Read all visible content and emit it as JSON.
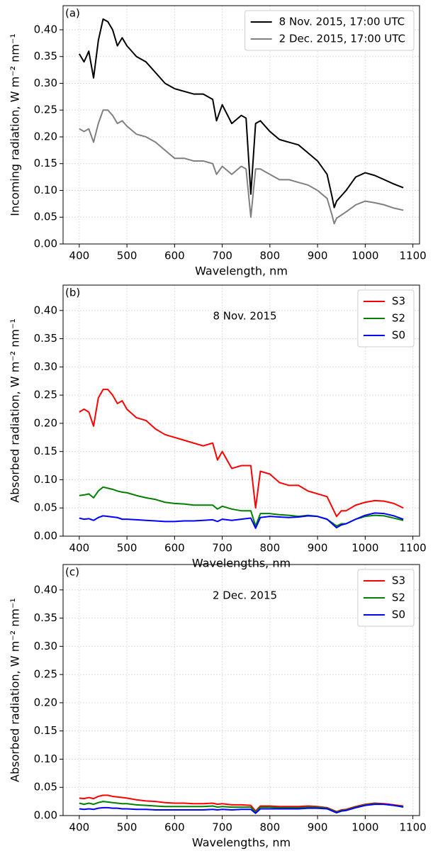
{
  "chart_data": [
    {
      "type": "line",
      "panel_label": "(a)",
      "xlabel": "Wavelength, nm",
      "ylabel": "Incoming radiation, W m⁻² nm⁻¹",
      "x": [
        400,
        410,
        420,
        430,
        440,
        450,
        460,
        470,
        480,
        490,
        500,
        520,
        540,
        560,
        580,
        600,
        620,
        640,
        660,
        680,
        688,
        700,
        720,
        740,
        750,
        760,
        770,
        780,
        800,
        820,
        840,
        860,
        880,
        900,
        920,
        930,
        935,
        940,
        960,
        980,
        1000,
        1020,
        1040,
        1060,
        1080
      ],
      "series": [
        {
          "name": "8 Nov. 2015, 17:00 UTC",
          "color": "#000000",
          "values": [
            0.355,
            0.34,
            0.36,
            0.31,
            0.38,
            0.42,
            0.415,
            0.4,
            0.37,
            0.385,
            0.37,
            0.35,
            0.34,
            0.32,
            0.3,
            0.29,
            0.285,
            0.28,
            0.28,
            0.27,
            0.23,
            0.26,
            0.225,
            0.24,
            0.235,
            0.093,
            0.225,
            0.23,
            0.21,
            0.195,
            0.19,
            0.185,
            0.17,
            0.155,
            0.13,
            0.09,
            0.068,
            0.08,
            0.1,
            0.125,
            0.133,
            0.128,
            0.12,
            0.112,
            0.105
          ]
        },
        {
          "name": "2 Dec. 2015, 17:00 UTC",
          "color": "#808080",
          "values": [
            0.215,
            0.21,
            0.215,
            0.19,
            0.225,
            0.25,
            0.25,
            0.24,
            0.225,
            0.23,
            0.22,
            0.205,
            0.2,
            0.19,
            0.175,
            0.16,
            0.16,
            0.155,
            0.155,
            0.15,
            0.13,
            0.145,
            0.13,
            0.145,
            0.14,
            0.05,
            0.14,
            0.14,
            0.13,
            0.12,
            0.12,
            0.115,
            0.11,
            0.1,
            0.085,
            0.055,
            0.038,
            0.048,
            0.06,
            0.073,
            0.08,
            0.077,
            0.073,
            0.067,
            0.063
          ]
        }
      ],
      "xlim": [
        366,
        1114
      ],
      "ylim": [
        0,
        0.445
      ],
      "xticks": [
        400,
        500,
        600,
        700,
        800,
        900,
        1000,
        1100
      ],
      "yticks": [
        {
          "value": 0,
          "label": "0.00"
        },
        {
          "value": 0.05,
          "label": "0.05"
        },
        {
          "value": 0.1,
          "label": "0.10"
        },
        {
          "value": 0.15,
          "label": "0.15"
        },
        {
          "value": 0.2,
          "label": "0.20"
        },
        {
          "value": 0.25,
          "label": "0.25"
        },
        {
          "value": 0.3,
          "label": "0.30"
        },
        {
          "value": 0.35,
          "label": "0.35"
        },
        {
          "value": 0.4,
          "label": "0.40"
        }
      ],
      "grid": true,
      "legend": "upper right"
    },
    {
      "type": "line",
      "panel_label": "(b)",
      "annotation": "8 Nov. 2015",
      "xlabel": "Wavelengths, nm",
      "ylabel": "Absorbed radiation, W m⁻² nm⁻¹",
      "x": [
        400,
        410,
        420,
        430,
        440,
        450,
        460,
        470,
        480,
        490,
        500,
        520,
        540,
        560,
        580,
        600,
        620,
        640,
        660,
        680,
        690,
        700,
        720,
        740,
        760,
        770,
        780,
        800,
        820,
        840,
        860,
        880,
        900,
        920,
        940,
        950,
        960,
        980,
        1000,
        1020,
        1040,
        1060,
        1080
      ],
      "series": [
        {
          "name": "S3",
          "color": "#ff0000",
          "values": [
            0.22,
            0.225,
            0.22,
            0.195,
            0.245,
            0.26,
            0.26,
            0.25,
            0.235,
            0.24,
            0.225,
            0.21,
            0.205,
            0.19,
            0.18,
            0.175,
            0.17,
            0.165,
            0.16,
            0.165,
            0.135,
            0.15,
            0.12,
            0.125,
            0.125,
            0.05,
            0.115,
            0.11,
            0.095,
            0.09,
            0.09,
            0.08,
            0.075,
            0.07,
            0.035,
            0.045,
            0.045,
            0.055,
            0.06,
            0.063,
            0.062,
            0.058,
            0.05
          ]
        },
        {
          "name": "S2",
          "color": "#008000",
          "values": [
            0.072,
            0.073,
            0.075,
            0.068,
            0.08,
            0.087,
            0.085,
            0.083,
            0.08,
            0.078,
            0.077,
            0.072,
            0.068,
            0.065,
            0.06,
            0.058,
            0.057,
            0.055,
            0.055,
            0.055,
            0.048,
            0.053,
            0.048,
            0.045,
            0.045,
            0.018,
            0.04,
            0.04,
            0.038,
            0.037,
            0.035,
            0.037,
            0.035,
            0.03,
            0.018,
            0.022,
            0.022,
            0.03,
            0.035,
            0.037,
            0.036,
            0.032,
            0.028
          ]
        },
        {
          "name": "S0",
          "color": "#0000ff",
          "values": [
            0.032,
            0.03,
            0.031,
            0.028,
            0.033,
            0.036,
            0.035,
            0.034,
            0.033,
            0.03,
            0.03,
            0.029,
            0.028,
            0.027,
            0.026,
            0.026,
            0.027,
            0.027,
            0.028,
            0.029,
            0.026,
            0.03,
            0.028,
            0.03,
            0.032,
            0.014,
            0.033,
            0.035,
            0.034,
            0.033,
            0.034,
            0.036,
            0.035,
            0.03,
            0.015,
            0.02,
            0.022,
            0.03,
            0.037,
            0.041,
            0.04,
            0.036,
            0.03
          ]
        }
      ],
      "xlim": [
        366,
        1114
      ],
      "ylim": [
        0,
        0.445
      ],
      "xticks": [
        400,
        500,
        600,
        700,
        800,
        900,
        1000,
        1100
      ],
      "yticks": [
        {
          "value": 0,
          "label": "0.00"
        },
        {
          "value": 0.05,
          "label": "0.05"
        },
        {
          "value": 0.1,
          "label": "0.10"
        },
        {
          "value": 0.15,
          "label": "0.15"
        },
        {
          "value": 0.2,
          "label": "0.20"
        },
        {
          "value": 0.25,
          "label": "0.25"
        },
        {
          "value": 0.3,
          "label": "0.30"
        },
        {
          "value": 0.35,
          "label": "0.35"
        },
        {
          "value": 0.4,
          "label": "0.40"
        }
      ],
      "grid": true,
      "legend": "upper right"
    },
    {
      "type": "line",
      "panel_label": "(c)",
      "annotation": "2 Dec. 2015",
      "xlabel": "Wavelengths, nm",
      "ylabel": "Absorbed radiation, W m⁻² nm⁻¹",
      "x": [
        400,
        410,
        420,
        430,
        440,
        450,
        460,
        470,
        480,
        490,
        500,
        520,
        540,
        560,
        580,
        600,
        620,
        640,
        660,
        680,
        690,
        700,
        720,
        740,
        760,
        770,
        780,
        800,
        820,
        840,
        860,
        880,
        900,
        920,
        940,
        950,
        960,
        980,
        1000,
        1020,
        1040,
        1060,
        1080
      ],
      "series": [
        {
          "name": "S3",
          "color": "#ff0000",
          "values": [
            0.031,
            0.03,
            0.032,
            0.03,
            0.034,
            0.036,
            0.036,
            0.034,
            0.033,
            0.032,
            0.031,
            0.028,
            0.026,
            0.025,
            0.023,
            0.022,
            0.022,
            0.021,
            0.021,
            0.022,
            0.02,
            0.021,
            0.019,
            0.019,
            0.018,
            0.008,
            0.017,
            0.017,
            0.016,
            0.016,
            0.016,
            0.017,
            0.016,
            0.014,
            0.007,
            0.01,
            0.011,
            0.016,
            0.02,
            0.022,
            0.021,
            0.019,
            0.017
          ]
        },
        {
          "name": "S2",
          "color": "#008000",
          "values": [
            0.022,
            0.02,
            0.022,
            0.02,
            0.023,
            0.025,
            0.024,
            0.023,
            0.022,
            0.021,
            0.021,
            0.019,
            0.018,
            0.017,
            0.016,
            0.016,
            0.016,
            0.016,
            0.016,
            0.017,
            0.015,
            0.016,
            0.015,
            0.015,
            0.015,
            0.006,
            0.015,
            0.015,
            0.014,
            0.014,
            0.014,
            0.015,
            0.015,
            0.013,
            0.006,
            0.009,
            0.01,
            0.015,
            0.019,
            0.021,
            0.02,
            0.018,
            0.016
          ]
        },
        {
          "name": "S0",
          "color": "#0000ff",
          "values": [
            0.012,
            0.011,
            0.012,
            0.011,
            0.013,
            0.014,
            0.014,
            0.013,
            0.013,
            0.012,
            0.012,
            0.011,
            0.011,
            0.01,
            0.01,
            0.01,
            0.01,
            0.01,
            0.01,
            0.011,
            0.01,
            0.011,
            0.01,
            0.011,
            0.011,
            0.004,
            0.012,
            0.012,
            0.012,
            0.012,
            0.012,
            0.013,
            0.013,
            0.012,
            0.005,
            0.008,
            0.009,
            0.014,
            0.018,
            0.02,
            0.02,
            0.018,
            0.015
          ]
        }
      ],
      "xlim": [
        366,
        1114
      ],
      "ylim": [
        0,
        0.445
      ],
      "xticks": [
        400,
        500,
        600,
        700,
        800,
        900,
        1000,
        1100
      ],
      "yticks": [
        {
          "value": 0,
          "label": "0.00"
        },
        {
          "value": 0.05,
          "label": "0.05"
        },
        {
          "value": 0.1,
          "label": "0.10"
        },
        {
          "value": 0.15,
          "label": "0.15"
        },
        {
          "value": 0.2,
          "label": "0.20"
        },
        {
          "value": 0.25,
          "label": "0.25"
        },
        {
          "value": 0.3,
          "label": "0.30"
        },
        {
          "value": 0.35,
          "label": "0.35"
        },
        {
          "value": 0.4,
          "label": "0.40"
        }
      ],
      "grid": true,
      "legend": "upper right"
    }
  ]
}
